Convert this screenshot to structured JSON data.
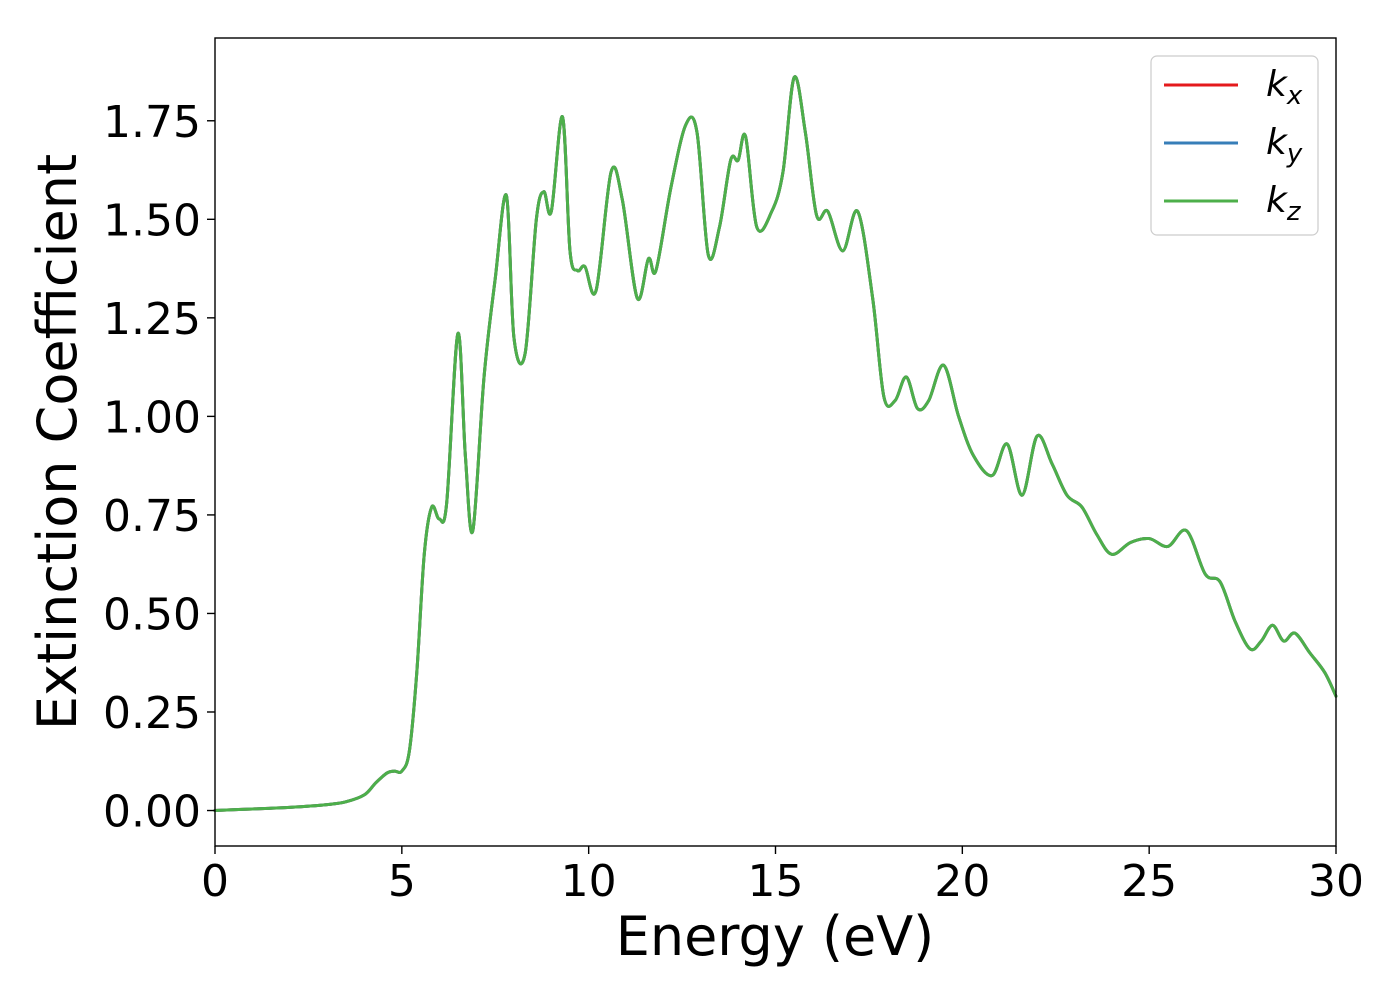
{
  "chart_data": {
    "type": "line",
    "title": "",
    "xlabel": "Energy (eV)",
    "ylabel": "Extinction Coefficient",
    "xlim": [
      0,
      30
    ],
    "ylim": [
      -0.09,
      1.96
    ],
    "xticks": [
      0,
      5,
      10,
      15,
      20,
      25,
      30
    ],
    "xtick_labels": [
      "0",
      "5",
      "10",
      "15",
      "20",
      "25",
      "30"
    ],
    "yticks": [
      0.0,
      0.25,
      0.5,
      0.75,
      1.0,
      1.25,
      1.5,
      1.75
    ],
    "ytick_labels": [
      "0.00",
      "0.25",
      "0.50",
      "0.75",
      "1.00",
      "1.25",
      "1.50",
      "1.75"
    ],
    "grid": false,
    "legend_position": "top-right",
    "x": [
      0,
      1,
      2,
      3,
      3.5,
      4,
      4.3,
      4.6,
      4.8,
      5.0,
      5.2,
      5.4,
      5.6,
      5.8,
      6.0,
      6.2,
      6.5,
      6.7,
      6.9,
      7.2,
      7.5,
      7.8,
      8.0,
      8.3,
      8.6,
      8.8,
      9.0,
      9.3,
      9.5,
      9.7,
      9.9,
      10.2,
      10.6,
      10.9,
      11.3,
      11.6,
      11.8,
      12.2,
      12.6,
      12.9,
      13.2,
      13.5,
      13.8,
      14.0,
      14.2,
      14.5,
      14.9,
      15.2,
      15.5,
      15.8,
      16.1,
      16.4,
      16.8,
      17.2,
      17.6,
      17.9,
      18.2,
      18.5,
      18.8,
      19.1,
      19.5,
      19.9,
      20.3,
      20.8,
      21.2,
      21.6,
      22.0,
      22.4,
      22.8,
      23.2,
      23.6,
      24.0,
      24.5,
      25.0,
      25.5,
      26.0,
      26.5,
      26.9,
      27.3,
      27.7,
      28.0,
      28.3,
      28.6,
      28.9,
      29.3,
      29.7,
      30.0
    ],
    "series": [
      {
        "name": "k_x",
        "color": "#e41a1c",
        "values": [
          0.0,
          0.004,
          0.008,
          0.015,
          0.022,
          0.04,
          0.07,
          0.095,
          0.1,
          0.1,
          0.15,
          0.35,
          0.65,
          0.77,
          0.74,
          0.78,
          1.21,
          0.9,
          0.71,
          1.1,
          1.35,
          1.56,
          1.2,
          1.16,
          1.5,
          1.57,
          1.52,
          1.76,
          1.42,
          1.37,
          1.38,
          1.32,
          1.62,
          1.55,
          1.3,
          1.4,
          1.37,
          1.58,
          1.74,
          1.72,
          1.41,
          1.48,
          1.65,
          1.65,
          1.71,
          1.48,
          1.52,
          1.62,
          1.86,
          1.72,
          1.51,
          1.52,
          1.42,
          1.52,
          1.3,
          1.05,
          1.04,
          1.1,
          1.02,
          1.04,
          1.13,
          1.0,
          0.9,
          0.85,
          0.93,
          0.8,
          0.95,
          0.88,
          0.8,
          0.77,
          0.7,
          0.65,
          0.68,
          0.69,
          0.67,
          0.71,
          0.6,
          0.58,
          0.48,
          0.41,
          0.43,
          0.47,
          0.43,
          0.45,
          0.4,
          0.35,
          0.29
        ]
      },
      {
        "name": "k_y",
        "color": "#377eb8",
        "values": [
          0.0,
          0.004,
          0.008,
          0.015,
          0.022,
          0.04,
          0.07,
          0.095,
          0.1,
          0.1,
          0.15,
          0.35,
          0.65,
          0.77,
          0.74,
          0.78,
          1.21,
          0.9,
          0.71,
          1.1,
          1.35,
          1.56,
          1.2,
          1.16,
          1.5,
          1.57,
          1.52,
          1.76,
          1.42,
          1.37,
          1.38,
          1.32,
          1.62,
          1.55,
          1.3,
          1.4,
          1.37,
          1.58,
          1.74,
          1.72,
          1.41,
          1.48,
          1.65,
          1.65,
          1.71,
          1.48,
          1.52,
          1.62,
          1.86,
          1.72,
          1.51,
          1.52,
          1.42,
          1.52,
          1.3,
          1.05,
          1.04,
          1.1,
          1.02,
          1.04,
          1.13,
          1.0,
          0.9,
          0.85,
          0.93,
          0.8,
          0.95,
          0.88,
          0.8,
          0.77,
          0.7,
          0.65,
          0.68,
          0.69,
          0.67,
          0.71,
          0.6,
          0.58,
          0.48,
          0.41,
          0.43,
          0.47,
          0.43,
          0.45,
          0.4,
          0.35,
          0.29
        ]
      },
      {
        "name": "k_z",
        "color": "#4daf4a",
        "values": [
          0.0,
          0.004,
          0.008,
          0.015,
          0.022,
          0.04,
          0.07,
          0.095,
          0.1,
          0.1,
          0.15,
          0.35,
          0.65,
          0.77,
          0.74,
          0.78,
          1.21,
          0.9,
          0.71,
          1.1,
          1.35,
          1.56,
          1.2,
          1.16,
          1.5,
          1.57,
          1.52,
          1.76,
          1.42,
          1.37,
          1.38,
          1.32,
          1.62,
          1.55,
          1.3,
          1.4,
          1.37,
          1.58,
          1.74,
          1.72,
          1.41,
          1.48,
          1.65,
          1.65,
          1.71,
          1.48,
          1.52,
          1.62,
          1.86,
          1.72,
          1.51,
          1.52,
          1.42,
          1.52,
          1.3,
          1.05,
          1.04,
          1.1,
          1.02,
          1.04,
          1.13,
          1.0,
          0.9,
          0.85,
          0.93,
          0.8,
          0.95,
          0.88,
          0.8,
          0.77,
          0.7,
          0.65,
          0.68,
          0.69,
          0.67,
          0.71,
          0.6,
          0.58,
          0.48,
          0.41,
          0.43,
          0.47,
          0.43,
          0.45,
          0.4,
          0.35,
          0.29
        ]
      }
    ],
    "legend": [
      {
        "base": "k",
        "sub": "x",
        "color": "#e41a1c"
      },
      {
        "base": "k",
        "sub": "y",
        "color": "#377eb8"
      },
      {
        "base": "k",
        "sub": "z",
        "color": "#4daf4a"
      }
    ]
  }
}
